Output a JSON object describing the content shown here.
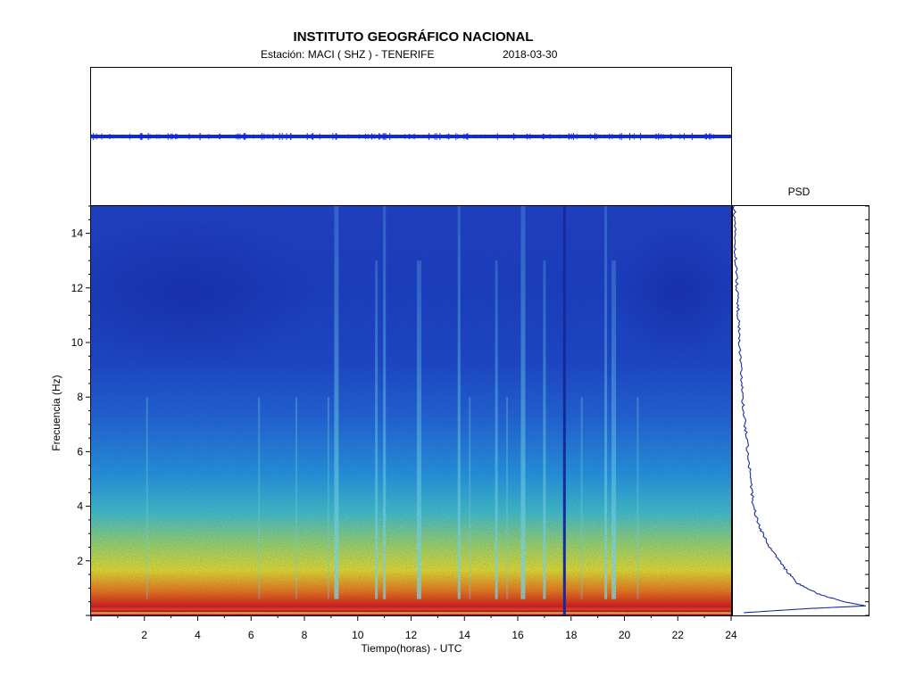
{
  "title": "INSTITUTO GEOGRÁFICO NACIONAL",
  "station_line": "Estación:  MACI ( SHZ ) - TENERIFE",
  "date": "2018-03-30",
  "chart_data": [
    {
      "type": "line",
      "title": "",
      "description_role": "seismogram trace (SHZ) over the day",
      "xlim": [
        0,
        24
      ],
      "trace_level": "flat constant trace with small noise",
      "color": "#1428d8"
    },
    {
      "type": "heatmap",
      "xlabel": "Tiempo(horas) - UTC",
      "ylabel": "Frecuencia  (Hz)",
      "xlim": [
        0,
        24
      ],
      "ylim": [
        0,
        15
      ],
      "x_ticks": [
        2,
        4,
        6,
        8,
        10,
        12,
        14,
        16,
        18,
        20,
        22,
        24
      ],
      "y_ticks": [
        2,
        4,
        6,
        8,
        10,
        12,
        14
      ],
      "colormap": "jet",
      "energy_by_frequency_note": "high energy (red) below ~1 Hz, decreasing to blue above ~6 Hz",
      "bright_vertical_events_hours": [
        9.2,
        10.7,
        11.0,
        12.3,
        13.8,
        15.2,
        16.2,
        17.0,
        19.3,
        19.6
      ],
      "data_gap_hour": 17.75
    },
    {
      "type": "line",
      "title": "PSD",
      "orientation": "frequency on vertical axis",
      "ylim": [
        0,
        15
      ],
      "points": [
        {
          "f": 0.1,
          "p": 0.08
        },
        {
          "f": 0.25,
          "p": 0.55
        },
        {
          "f": 0.35,
          "p": 0.98
        },
        {
          "f": 0.5,
          "p": 0.82
        },
        {
          "f": 0.8,
          "p": 0.62
        },
        {
          "f": 1.2,
          "p": 0.47
        },
        {
          "f": 1.8,
          "p": 0.37
        },
        {
          "f": 2.5,
          "p": 0.27
        },
        {
          "f": 3.2,
          "p": 0.2
        },
        {
          "f": 4.0,
          "p": 0.15
        },
        {
          "f": 5.0,
          "p": 0.13
        },
        {
          "f": 6.0,
          "p": 0.11
        },
        {
          "f": 7.0,
          "p": 0.09
        },
        {
          "f": 8.0,
          "p": 0.07
        },
        {
          "f": 9.0,
          "p": 0.06
        },
        {
          "f": 10.0,
          "p": 0.05
        },
        {
          "f": 11.0,
          "p": 0.04
        },
        {
          "f": 12.0,
          "p": 0.03
        },
        {
          "f": 13.0,
          "p": 0.02
        },
        {
          "f": 14.0,
          "p": 0.015
        },
        {
          "f": 15.0,
          "p": 0.01
        }
      ],
      "color": "#1a2ea0"
    }
  ]
}
